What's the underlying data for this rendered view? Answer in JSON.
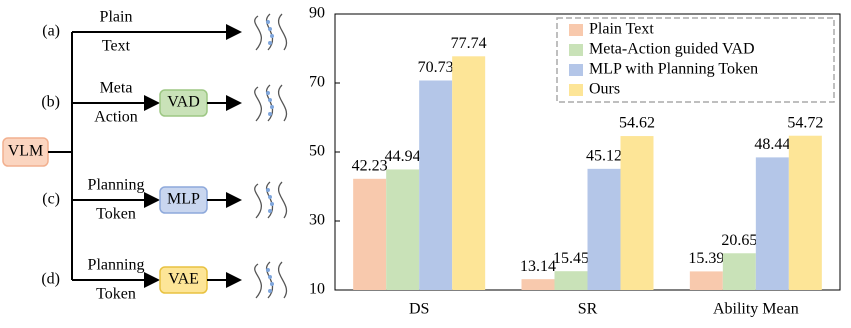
{
  "diagram": {
    "input": "VLM",
    "branches": [
      {
        "label": "(a)",
        "top": "Plain",
        "bottom": "Text"
      },
      {
        "label": "(b)",
        "top": "Meta",
        "bottom": "Action",
        "module": "VAD"
      },
      {
        "label": "(c)",
        "top": "Planning",
        "bottom": "Token",
        "module": "MLP"
      },
      {
        "label": "(d)",
        "top": "Planning",
        "bottom": "Token",
        "module": "VAE"
      }
    ]
  },
  "chart_data": {
    "type": "bar",
    "categories": [
      "DS",
      "SR",
      "Ability Mean"
    ],
    "series": [
      {
        "name": "Plain Text",
        "color": "#f8c9ad",
        "values": [
          42.23,
          13.14,
          15.39
        ]
      },
      {
        "name": "Meta-Action guided VAD",
        "color": "#c9e2b8",
        "values": [
          44.94,
          15.45,
          20.65
        ]
      },
      {
        "name": "MLP with Planning Token",
        "color": "#b4c6e8",
        "values": [
          70.73,
          45.12,
          48.44
        ]
      },
      {
        "name": "Ours",
        "color": "#fde597",
        "values": [
          77.74,
          54.62,
          54.72
        ]
      }
    ],
    "ylim": [
      10,
      90
    ],
    "yticks": [
      10,
      30,
      50,
      70,
      90
    ],
    "grid": false,
    "legend": "upper right"
  }
}
